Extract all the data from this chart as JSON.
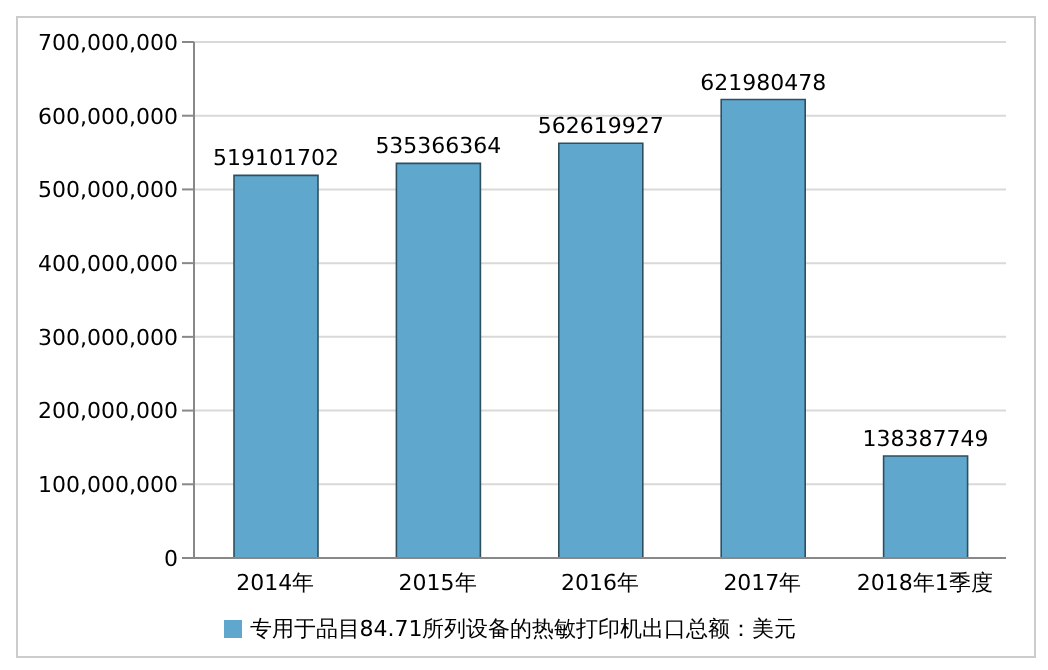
{
  "chart_data": {
    "type": "bar",
    "categories": [
      "2014年",
      "2015年",
      "2016年",
      "2017年",
      "2018年1季度"
    ],
    "series": [
      {
        "name": "专用于品目84.71所列设备的热敏打印机出口总额：美元",
        "color": "#5fa7cc",
        "values": [
          519101702,
          535366364,
          562619927,
          621980478,
          138387749
        ]
      }
    ],
    "ylim": [
      0,
      700000000
    ],
    "yticks": [
      0,
      {
        "value": 100000000,
        "label": "100,000,000"
      },
      {
        "value": 200000000,
        "label": "200,000,000"
      },
      {
        "value": 300000000,
        "label": "300,000,000"
      },
      {
        "value": 400000000,
        "label": "400,000,000"
      },
      {
        "value": 500000000,
        "label": "500,000,000"
      },
      {
        "value": 600000000,
        "label": "600,000,000"
      },
      {
        "value": 700000000,
        "label": "700,000,000"
      }
    ],
    "grid": "y",
    "legend": "bottom",
    "data_labels": true
  }
}
